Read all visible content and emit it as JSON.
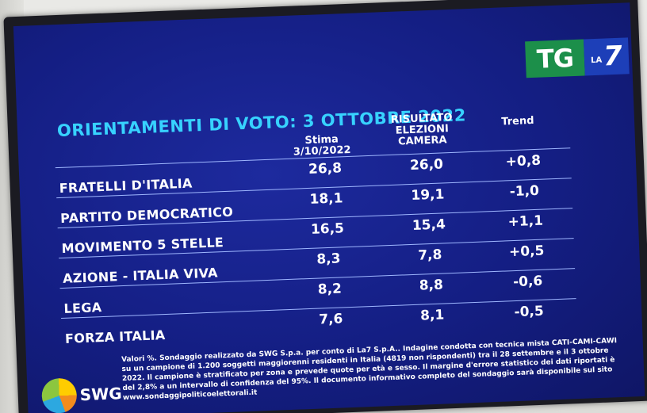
{
  "logo": {
    "tg": "TG",
    "la": "LA",
    "seven": "7"
  },
  "title": "ORIENTAMENTI DI VOTO: 3 OTTOBRE 2022",
  "columns": {
    "stima": [
      "Stima",
      "3/10/2022"
    ],
    "risultato": [
      "RISULTATO",
      "ELEZIONI",
      "CAMERA"
    ],
    "trend": "Trend"
  },
  "rows": [
    {
      "party": "FRATELLI D'ITALIA",
      "stima": "26,8",
      "risultato": "26,0",
      "trend": "+0,8"
    },
    {
      "party": "PARTITO DEMOCRATICO",
      "stima": "18,1",
      "risultato": "19,1",
      "trend": "-1,0"
    },
    {
      "party": "MOVIMENTO 5 STELLE",
      "stima": "16,5",
      "risultato": "15,4",
      "trend": "+1,1"
    },
    {
      "party": "AZIONE - ITALIA VIVA",
      "stima": "8,3",
      "risultato": "7,8",
      "trend": "+0,5"
    },
    {
      "party": "LEGA",
      "stima": "8,2",
      "risultato": "8,8",
      "trend": "-0,6"
    },
    {
      "party": "FORZA ITALIA",
      "stima": "7,6",
      "risultato": "8,1",
      "trend": "-0,5"
    }
  ],
  "footer": "Valori %. Sondaggio realizzato da SWG S.p.a. per conto di La7 S.p.A.. Indagine condotta con tecnica mista CATI-CAMI-CAWI su un campione di 1.200 soggetti maggiorenni residenti in Italia (4819 non rispondenti) tra il 28 settembre e il 3 ottobre 2022. Il campione è stratificato per zona e prevede quote per età e sesso. Il margine d'errore statistico dei dati riportati è del 2,8% a un intervallo di confidenza del 95%. Il documento informativo completo del sondaggio sarà disponibile sul sito www.sondaggipoliticoelettorali.it",
  "swg_logo": "SWG"
}
